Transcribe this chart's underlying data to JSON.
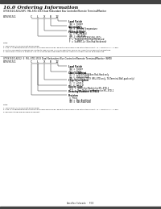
{
  "bg_color": "#ffffff",
  "top_bar_color": "#444444",
  "bottom_bar_color": "#444444",
  "section_title": "16.0 Ordering Information",
  "section1_header": "UT69151CLXE12GPC  MIL-STD-1553 Dual Redundant Bus Controller/Remote Terminal/Monitor",
  "section1_part": "UT69151   C   L   X   E   12",
  "section2_header": "UT69151CLXE12  E  MIL-STD-1553 Dual Redundant Bus Controller/Remote Terminal/Monitor (SMD)",
  "section2_part": "UT69151   C   L   X   E   12",
  "footer": "Aeroflex Colorado  ·  P.00"
}
